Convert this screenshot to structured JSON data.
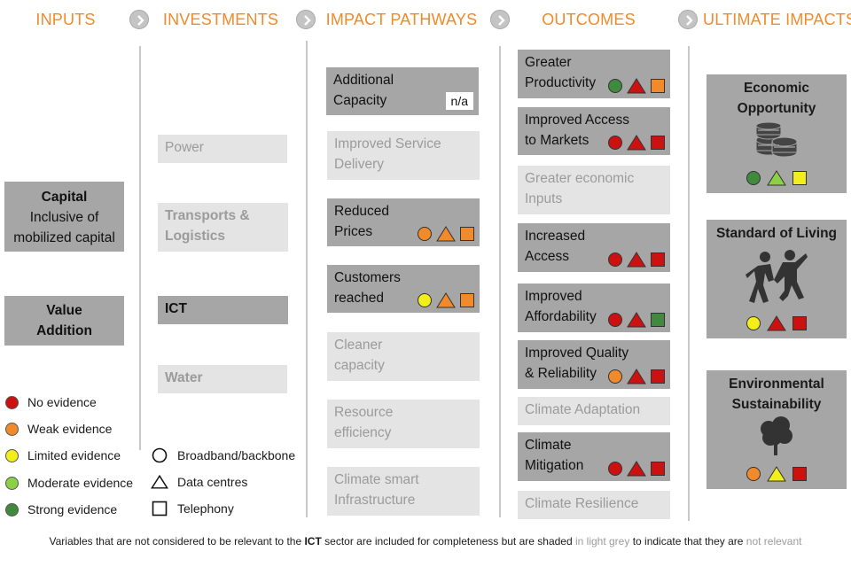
{
  "headers": {
    "inputs": "INPUTS",
    "investments": "INVESTMENTS",
    "pathways": "IMPACT PATHWAYS",
    "outcomes": "OUTCOMES",
    "ultimate": "ULTIMATE IMPACTS"
  },
  "colors": {
    "header": "#f08a2b",
    "box_dark": "#a6a6a6",
    "box_light": "#e4e4e4",
    "text_light": "#9b9b9b",
    "no_evidence": "#cc1111",
    "weak_evidence": "#f08a2b",
    "limited_evidence": "#f2ee1a",
    "moderate_evidence": "#8cd046",
    "strong_evidence": "#3f8a3c"
  },
  "inputs": {
    "capital_title": "Capital",
    "capital_sub": "Inclusive of\nmobilized capital",
    "value_addition": "Value\nAddition"
  },
  "investments": {
    "power": "Power",
    "transports": "Transports &\nLogistics",
    "ict": "ICT",
    "water": "Water"
  },
  "pathways": {
    "additional_capacity": "Additional\nCapacity",
    "additional_capacity_badge": "n/a",
    "improved_service": "Improved Service\nDelivery",
    "reduced_prices": "Reduced\nPrices",
    "customers_reached": "Customers\nreached",
    "cleaner_capacity": "Cleaner\ncapacity",
    "resource_efficiency": "Resource\nefficiency",
    "climate_smart": "Climate smart\nInfrastructure"
  },
  "outcomes": {
    "greater_productivity": "Greater\nProductivity",
    "improved_access_markets": "Improved Access\nto Markets",
    "greater_economic_inputs": "Greater economic\nInputs",
    "increased_access": "Increased\nAccess",
    "improved_affordability": "Improved\nAffordability",
    "improved_quality": "Improved Quality\n& Reliability",
    "climate_adaptation": "Climate Adaptation",
    "climate_mitigation": "Climate\nMitigation",
    "climate_resilience": "Climate Resilience"
  },
  "ultimate": {
    "economic": "Economic\nOpportunity",
    "economic_icon": "coins-icon",
    "living": "Standard of Living",
    "living_icon": "people-dancing-icon",
    "environment": "Environmental\nSustainability",
    "environment_icon": "tree-icon"
  },
  "evidence": {
    "reduced_prices": [
      "weak",
      "weak",
      "weak"
    ],
    "customers_reached": [
      "limited",
      "weak",
      "weak"
    ],
    "greater_productivity": [
      "strong",
      "no",
      "weak"
    ],
    "improved_access_markets": [
      "no",
      "no",
      "no"
    ],
    "increased_access": [
      "no",
      "no",
      "no"
    ],
    "improved_affordability": [
      "no",
      "no",
      "strong"
    ],
    "improved_quality": [
      "weak",
      "no",
      "no"
    ],
    "climate_mitigation": [
      "no",
      "no",
      "no"
    ],
    "economic": [
      "strong",
      "moderate",
      "limited"
    ],
    "living": [
      "limited",
      "no",
      "no"
    ],
    "environment": [
      "weak",
      "limited",
      "no"
    ]
  },
  "legend": {
    "no": "No evidence",
    "weak": "Weak evidence",
    "limited": "Limited evidence",
    "moderate": "Moderate evidence",
    "strong": "Strong evidence",
    "circle": "Broadband/backbone",
    "triangle": "Data centres",
    "square": "Telephony"
  },
  "footer": {
    "part1": "Variables that are not considered to be relevant to the ",
    "sector": "ICT",
    "part2": " sector are included for completeness but are shaded ",
    "grey1": "in light grey",
    "part3": " to indicate that they are ",
    "grey2": "not relevant"
  }
}
